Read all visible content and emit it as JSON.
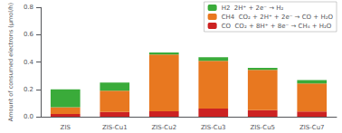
{
  "chart_data": {
    "type": "bar",
    "categories": [
      "ZIS",
      "ZIS-Cu1",
      "ZIS-Cu2",
      "ZIS-Cu3",
      "ZIS-Cu5",
      "ZIS-Cu7"
    ],
    "series": [
      {
        "name": "CO  CO₂ + 8H⁺ + 8e⁻ → CH₄ + H₂O",
        "color": "#cc2222",
        "values": [
          0.02,
          0.035,
          0.04,
          0.06,
          0.048,
          0.038
        ]
      },
      {
        "name": "CH4  CO₂ + 2H⁺ + 2e⁻ → CO + H₂O",
        "color": "#e87820",
        "values": [
          0.05,
          0.155,
          0.415,
          0.35,
          0.295,
          0.205
        ]
      },
      {
        "name": "H2  2H⁺ + 2e⁻ → H₂",
        "color": "#3aab3a",
        "values": [
          0.13,
          0.06,
          0.015,
          0.025,
          0.015,
          0.025
        ]
      }
    ],
    "ylabel": "Amount of consumed electrons (μmol/h)",
    "ylim": [
      0,
      0.8
    ],
    "yticks": [
      {
        "value": 0,
        "label": "0.0"
      },
      0.2,
      0.4,
      0.6,
      0.8
    ],
    "stacked": true,
    "legend": "upper right",
    "grid": false
  }
}
